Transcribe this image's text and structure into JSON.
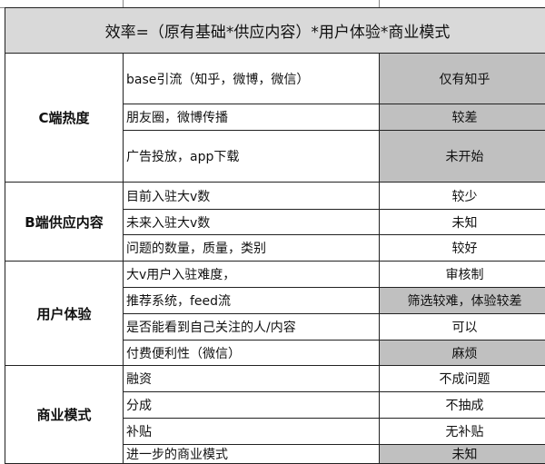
{
  "title": "效率=（原有基础*供应内容）*用户体验*商业模式",
  "shade_color": "#c0c0c0",
  "title_bg": "#d9d9d9",
  "sections": [
    {
      "category": "C端热度",
      "rows": [
        {
          "item": "base引流（知乎，微博，微信）",
          "value": "仅有知乎",
          "shaded": true
        },
        {
          "item": "朋友圈，微博传播",
          "value": "较差",
          "shaded": true
        },
        {
          "item": "广告投放，app下载",
          "value": "未开始",
          "shaded": true
        }
      ]
    },
    {
      "category": "B端供应内容",
      "rows": [
        {
          "item": "目前入驻大v数",
          "value": "较少",
          "shaded": false
        },
        {
          "item": "未来入驻大v数",
          "value": "未知",
          "shaded": false
        },
        {
          "item": "问题的数量，质量，类别",
          "value": "较好",
          "shaded": false
        }
      ]
    },
    {
      "category": "用户体验",
      "rows": [
        {
          "item": "大v用户入驻难度，",
          "value": "审核制",
          "shaded": false
        },
        {
          "item": "推荐系统，feed流",
          "value": "筛选较难，体验较差",
          "shaded": true
        },
        {
          "item": "是否能看到自己关注的人/内容",
          "value": "可以",
          "shaded": false
        },
        {
          "item": "付费便利性（微信）",
          "value": "麻烦",
          "shaded": true
        }
      ]
    },
    {
      "category": "商业模式",
      "rows": [
        {
          "item": "融资",
          "value": "不成问题",
          "shaded": false
        },
        {
          "item": "分成",
          "value": "不抽成",
          "shaded": false
        },
        {
          "item": "补贴",
          "value": "无补贴",
          "shaded": false
        },
        {
          "item": "进一步的商业模式",
          "value": "未知",
          "shaded": true
        }
      ]
    }
  ]
}
